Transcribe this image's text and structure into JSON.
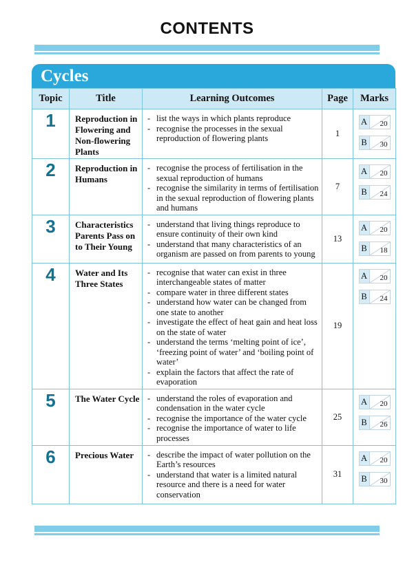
{
  "page_title": "CONTENTS",
  "section": {
    "title": "Cycles"
  },
  "theme": {
    "accent_blue": "#2BA8DB",
    "header_row_bg": "#CDE9F5",
    "table_border": "#7CC4DF",
    "topic_number_color": "#16708F",
    "divider_bar_color": "#7FCDE9",
    "score_box_border": "#C2D4DF",
    "mark_label_bg": "#D5EBF6"
  },
  "table": {
    "columns": [
      "Topic",
      "Title",
      "Learning Outcomes",
      "Page",
      "Marks"
    ],
    "rows": [
      {
        "topic": "1",
        "title": "Reproduction in Flowering and Non-flowering Plants",
        "outcomes": [
          "list the ways in which plants reproduce",
          "recognise the processes in the sexual reproduction of flowering plants"
        ],
        "page": "1",
        "marks": [
          {
            "label": "A",
            "score": "20"
          },
          {
            "label": "B",
            "score": "30"
          }
        ]
      },
      {
        "topic": "2",
        "title": "Reproduction in Humans",
        "outcomes": [
          "recognise the process of fertilisation in the sexual reproduction of humans",
          "recognise the similarity in terms of fertilisation in the sexual reproduction of flowering plants and humans"
        ],
        "page": "7",
        "marks": [
          {
            "label": "A",
            "score": "20"
          },
          {
            "label": "B",
            "score": "24"
          }
        ]
      },
      {
        "topic": "3",
        "title": "Characteristics Parents Pass on to Their Young",
        "outcomes": [
          "understand that living things reproduce to ensure continuity of their own kind",
          "understand that many characteristics of an organism are passed on from parents to young"
        ],
        "page": "13",
        "marks": [
          {
            "label": "A",
            "score": "20"
          },
          {
            "label": "B",
            "score": "18"
          }
        ]
      },
      {
        "topic": "4",
        "title": "Water and Its Three States",
        "outcomes": [
          "recognise that water can exist in three interchangeable states of matter",
          "compare water in three different states",
          "understand how water can be changed from one state to another",
          "investigate the effect of heat gain and heat loss on the state of water",
          "understand the terms ‘melting point of ice’, ‘freezing point of water’ and ‘boiling point of water’",
          "explain the factors that affect the rate of evaporation"
        ],
        "page": "19",
        "marks": [
          {
            "label": "A",
            "score": "20"
          },
          {
            "label": "B",
            "score": "24"
          }
        ]
      },
      {
        "topic": "5",
        "title": "The Water Cycle",
        "outcomes": [
          "understand the roles of evaporation and condensation in the water cycle",
          "recognise the importance of the water cycle",
          "recognise the importance of water to life processes"
        ],
        "page": "25",
        "marks": [
          {
            "label": "A",
            "score": "20"
          },
          {
            "label": "B",
            "score": "26"
          }
        ]
      },
      {
        "topic": "6",
        "title": "Precious Water",
        "outcomes": [
          "describe the impact of water pollution on the Earth’s resources",
          "understand that water is a limited natural resource and there is a need for water conservation"
        ],
        "page": "31",
        "marks": [
          {
            "label": "A",
            "score": "20"
          },
          {
            "label": "B",
            "score": "30"
          }
        ]
      }
    ]
  }
}
